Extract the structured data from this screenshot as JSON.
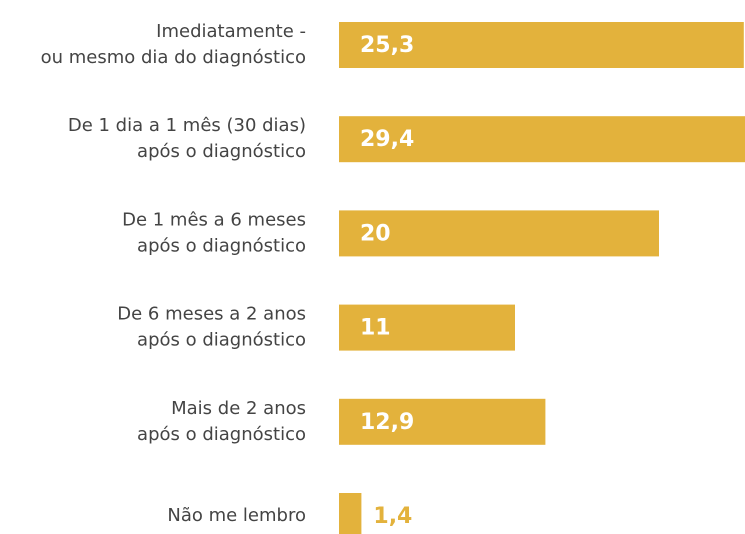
{
  "chart_data": {
    "type": "hbar",
    "categories": [
      "Imediatamente -\nou mesmo dia do diagnóstico",
      "De 1 dia a 1 mês (30 dias)\napós o diagnóstico",
      "De 1 mês a 6 meses\napós o diagnóstico",
      "De 6 meses a 2 anos\napós o diagnóstico",
      "Mais de 2 anos\napós o diagnóstico",
      "Não me lembro"
    ],
    "values": [
      25.3,
      29.4,
      20,
      11,
      12.9,
      1.4
    ],
    "value_labels": [
      "25,3",
      "29,4",
      "20",
      "11",
      "12,9",
      "1,4"
    ],
    "color": "#e3b23c"
  }
}
